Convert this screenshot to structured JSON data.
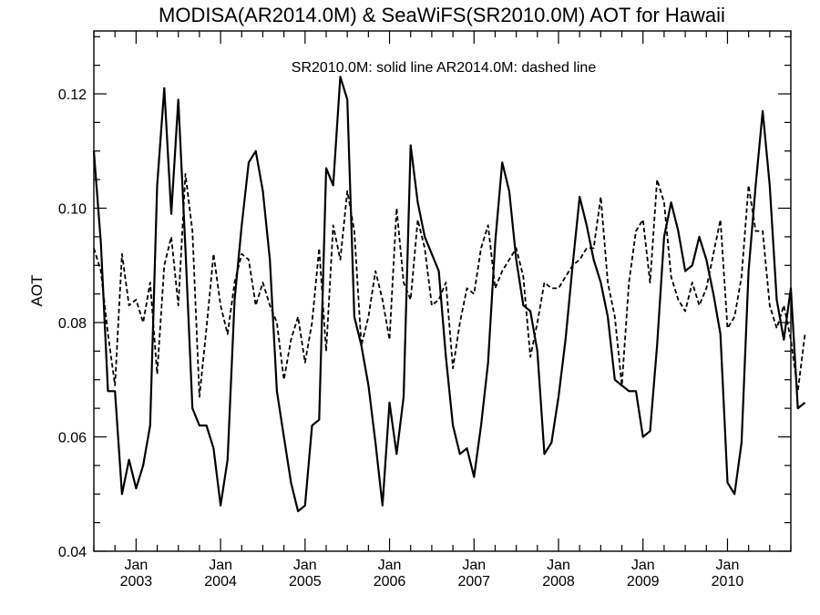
{
  "chart_data": {
    "type": "line",
    "title": "MODISA(AR2014.0M) & SeaWiFS(SR2010.0M)  AOT for Hawaii",
    "annotation": "SR2010.0M: solid line   AR2014.0M: dashed line",
    "ylabel": "AOT",
    "xlabel": "",
    "ylim": [
      0.04,
      0.131
    ],
    "xlim": [
      "2002-07",
      "2010-10"
    ],
    "yticks": [
      "0.04",
      "0.06",
      "0.08",
      "0.10",
      "0.12"
    ],
    "xticks": [
      {
        "month": "Jan",
        "year": "2003",
        "date": "2003-01"
      },
      {
        "month": "Jan",
        "year": "2004",
        "date": "2004-01"
      },
      {
        "month": "Jan",
        "year": "2005",
        "date": "2005-01"
      },
      {
        "month": "Jan",
        "year": "2006",
        "date": "2006-01"
      },
      {
        "month": "Jan",
        "year": "2007",
        "date": "2007-01"
      },
      {
        "month": "Jan",
        "year": "2008",
        "date": "2008-01"
      },
      {
        "month": "Jan",
        "year": "2009",
        "date": "2009-01"
      },
      {
        "month": "Jan",
        "year": "2010",
        "date": "2010-01"
      }
    ],
    "series": [
      {
        "name": "SR2010.0M",
        "style": "solid",
        "start": "2002-07",
        "values": [
          0.11,
          0.094,
          0.068,
          0.068,
          0.05,
          0.056,
          0.051,
          0.055,
          0.062,
          0.104,
          0.121,
          0.099,
          0.119,
          0.093,
          0.065,
          0.062,
          0.062,
          0.058,
          0.048,
          0.056,
          0.084,
          0.097,
          0.108,
          0.11,
          0.103,
          0.091,
          0.068,
          0.06,
          0.052,
          0.047,
          0.048,
          0.062,
          0.063,
          0.107,
          0.104,
          0.123,
          0.119,
          0.081,
          0.076,
          0.069,
          0.059,
          0.048,
          0.066,
          0.057,
          0.067,
          0.111,
          0.101,
          0.095,
          0.092,
          0.089,
          0.074,
          0.062,
          0.057,
          0.058,
          0.053,
          0.062,
          0.073,
          0.094,
          0.108,
          0.103,
          0.091,
          0.083,
          0.082,
          0.075,
          0.057,
          0.059,
          0.067,
          0.077,
          0.09,
          0.102,
          0.097,
          0.091,
          0.087,
          0.081,
          0.07,
          0.069,
          0.068,
          0.068,
          0.06,
          0.061,
          0.076,
          0.095,
          0.101,
          0.096,
          0.089,
          0.09,
          0.095,
          0.091,
          0.085,
          0.078,
          0.052,
          0.05,
          0.059,
          0.089,
          0.104,
          0.117,
          0.104,
          0.084,
          0.077,
          0.086,
          0.065,
          0.066
        ]
      },
      {
        "name": "AR2014.0M",
        "style": "dashed",
        "start": "2002-07",
        "values": [
          0.093,
          0.089,
          0.078,
          0.069,
          0.092,
          0.083,
          0.084,
          0.08,
          0.087,
          0.071,
          0.09,
          0.095,
          0.083,
          0.106,
          0.096,
          0.067,
          0.079,
          0.092,
          0.083,
          0.078,
          0.087,
          0.092,
          0.091,
          0.083,
          0.087,
          0.083,
          0.08,
          0.07,
          0.077,
          0.081,
          0.073,
          0.08,
          0.093,
          0.075,
          0.097,
          0.091,
          0.103,
          0.096,
          0.076,
          0.081,
          0.089,
          0.084,
          0.077,
          0.1,
          0.087,
          0.084,
          0.098,
          0.093,
          0.083,
          0.084,
          0.087,
          0.072,
          0.08,
          0.086,
          0.085,
          0.093,
          0.097,
          0.086,
          0.089,
          0.091,
          0.093,
          0.088,
          0.074,
          0.08,
          0.087,
          0.086,
          0.086,
          0.088,
          0.09,
          0.091,
          0.093,
          0.093,
          0.102,
          0.087,
          0.081,
          0.069,
          0.087,
          0.096,
          0.098,
          0.087,
          0.105,
          0.101,
          0.088,
          0.084,
          0.082,
          0.087,
          0.083,
          0.086,
          0.092,
          0.098,
          0.079,
          0.081,
          0.088,
          0.104,
          0.096,
          0.096,
          0.083,
          0.079,
          0.083,
          0.077,
          0.068,
          0.078
        ]
      }
    ]
  }
}
